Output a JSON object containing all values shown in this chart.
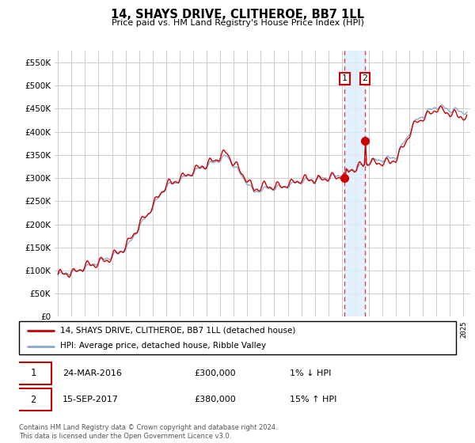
{
  "title": "14, SHAYS DRIVE, CLITHEROE, BB7 1LL",
  "subtitle": "Price paid vs. HM Land Registry's House Price Index (HPI)",
  "ylabel_ticks": [
    "£0",
    "£50K",
    "£100K",
    "£150K",
    "£200K",
    "£250K",
    "£300K",
    "£350K",
    "£400K",
    "£450K",
    "£500K",
    "£550K"
  ],
  "ytick_vals": [
    0,
    50000,
    100000,
    150000,
    200000,
    250000,
    300000,
    350000,
    400000,
    450000,
    500000,
    550000
  ],
  "ylim": [
    0,
    575000
  ],
  "xlim_start": 1994.75,
  "xlim_end": 2025.5,
  "legend_line1": "14, SHAYS DRIVE, CLITHEROE, BB7 1LL (detached house)",
  "legend_line2": "HPI: Average price, detached house, Ribble Valley",
  "line_color_red": "#cc0000",
  "line_color_blue": "#88aacc",
  "transaction1_date": "24-MAR-2016",
  "transaction1_price": "£300,000",
  "transaction1_hpi": "1% ↓ HPI",
  "transaction1_x": 2016.21,
  "transaction1_y": 300000,
  "transaction2_date": "15-SEP-2017",
  "transaction2_price": "£380,000",
  "transaction2_hpi": "15% ↑ HPI",
  "transaction2_x": 2017.71,
  "transaction2_y": 380000,
  "footer": "Contains HM Land Registry data © Crown copyright and database right 2024.\nThis data is licensed under the Open Government Licence v3.0.",
  "background_color": "#ffffff",
  "grid_color": "#cccccc",
  "vband_color": "#ddeeff",
  "vline_color": "#dd4444"
}
